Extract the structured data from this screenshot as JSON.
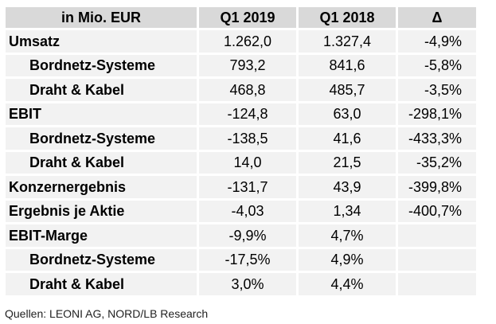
{
  "table": {
    "columns": [
      "in Mio. EUR",
      "Q1 2019",
      "Q1 2018",
      "Δ"
    ],
    "rows": [
      {
        "label": "Umsatz",
        "q1_2019": "1.262,0",
        "q1_2018": "1.327,4",
        "delta": "-4,9%",
        "indent": false
      },
      {
        "label": "Bordnetz-Systeme",
        "q1_2019": "793,2",
        "q1_2018": "841,6",
        "delta": "-5,8%",
        "indent": true
      },
      {
        "label": "Draht & Kabel",
        "q1_2019": "468,8",
        "q1_2018": "485,7",
        "delta": "-3,5%",
        "indent": true
      },
      {
        "label": "EBIT",
        "q1_2019": "-124,8",
        "q1_2018": "63,0",
        "delta": "-298,1%",
        "indent": false
      },
      {
        "label": "Bordnetz-Systeme",
        "q1_2019": "-138,5",
        "q1_2018": "41,6",
        "delta": "-433,3%",
        "indent": true
      },
      {
        "label": "Draht & Kabel",
        "q1_2019": "14,0",
        "q1_2018": "21,5",
        "delta": "-35,2%",
        "indent": true
      },
      {
        "label": "Konzernergebnis",
        "q1_2019": "-131,7",
        "q1_2018": "43,9",
        "delta": "-399,8%",
        "indent": false
      },
      {
        "label": "Ergebnis je Aktie",
        "q1_2019": "-4,03",
        "q1_2018": "1,34",
        "delta": "-400,7%",
        "indent": false
      },
      {
        "label": "EBIT-Marge",
        "q1_2019": "-9,9%",
        "q1_2018": "4,7%",
        "delta": "",
        "indent": false
      },
      {
        "label": "Bordnetz-Systeme",
        "q1_2019": "-17,5%",
        "q1_2018": "4,9%",
        "delta": "",
        "indent": true
      },
      {
        "label": "Draht & Kabel",
        "q1_2019": "3,0%",
        "q1_2018": "4,4%",
        "delta": "",
        "indent": true
      }
    ]
  },
  "source": "Quellen: LEONI AG, NORD/LB Research"
}
